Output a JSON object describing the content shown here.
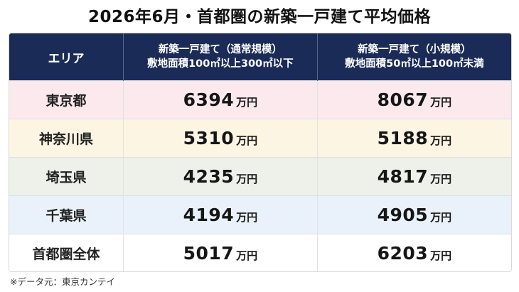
{
  "title": "2026年6月・首都圏の新築一戸建て平均価格",
  "table": {
    "header": {
      "area": "エリア",
      "col1_line1": "新築一戸建て（通常規模）",
      "col1_line2": "敷地面積100㎡以上300㎡以下",
      "col2_line1": "新築一戸建て（小規模）",
      "col2_line2": "敷地面積50㎡以上100㎡未満"
    },
    "unit": "万円",
    "rows": [
      {
        "area": "東京都",
        "v1": "6394",
        "v2": "8067",
        "bg": "#fbe9ee"
      },
      {
        "area": "神奈川県",
        "v1": "5310",
        "v2": "5188",
        "bg": "#fcf5e3"
      },
      {
        "area": "埼玉県",
        "v1": "4235",
        "v2": "4817",
        "bg": "#edf1ea"
      },
      {
        "area": "千葉県",
        "v1": "4194",
        "v2": "4905",
        "bg": "#e9f1fa"
      },
      {
        "area": "首都圏全体",
        "v1": "5017",
        "v2": "6203",
        "bg": "#ffffff"
      }
    ]
  },
  "source": "※データ元：東京カンテイ",
  "chart_data": {
    "type": "table",
    "title": "2026年6月・首都圏の新築一戸建て平均価格",
    "columns": [
      "エリア",
      "新築一戸建て（通常規模）敷地面積100㎡以上300㎡以下",
      "新築一戸建て（小規模）敷地面積50㎡以上100㎡未満"
    ],
    "unit": "万円",
    "categories": [
      "東京都",
      "神奈川県",
      "埼玉県",
      "千葉県",
      "首都圏全体"
    ],
    "series": [
      {
        "name": "新築一戸建て（通常規模）",
        "values": [
          6394,
          5310,
          4235,
          4194,
          5017
        ]
      },
      {
        "name": "新築一戸建て（小規模）",
        "values": [
          8067,
          5188,
          4817,
          4905,
          6203
        ]
      }
    ]
  }
}
